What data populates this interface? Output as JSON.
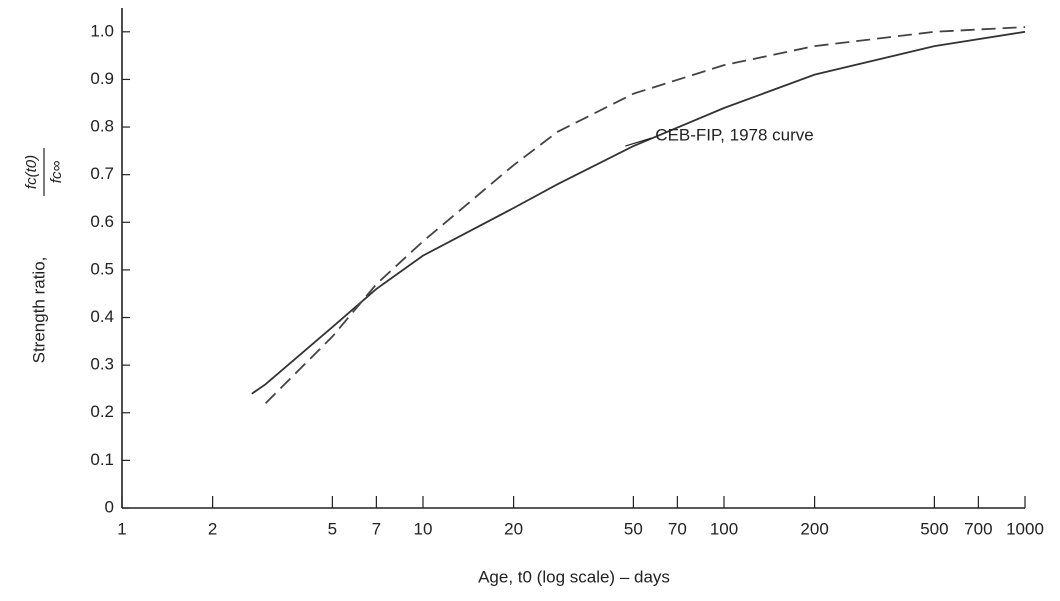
{
  "chart_data": {
    "type": "line",
    "x_label": "Age, t0 (log scale) – days",
    "y_label": "Strength ratio,",
    "y_label_numerator": "fc(t0)",
    "y_label_denominator": "fc∞",
    "x": [
      2.7,
      3,
      5,
      7,
      10,
      20,
      28,
      50,
      100,
      200,
      500,
      1000
    ],
    "series": [
      {
        "color": "#333333",
        "dashed": false,
        "values": [
          0.24,
          0.26,
          0.38,
          0.46,
          0.53,
          0.63,
          0.68,
          0.76,
          0.84,
          0.91,
          0.97,
          1.0
        ]
      },
      {
        "color": "#444444",
        "dashed": true,
        "values": [
          null,
          0.22,
          0.36,
          0.47,
          0.56,
          0.72,
          0.79,
          0.87,
          0.93,
          0.97,
          1.0,
          1.01
        ]
      }
    ],
    "annotation": {
      "text": "CEB-FIP, 1978 curve",
      "x": 47,
      "y": 0.76
    },
    "xlim": [
      1,
      1000
    ],
    "ylim": [
      0,
      1.05
    ],
    "xlog": true,
    "xticks": [
      1,
      2,
      5,
      7,
      10,
      20,
      50,
      70,
      100,
      200,
      500,
      700,
      1000
    ],
    "yticks": [
      0,
      0.1,
      0.2,
      0.3,
      0.4,
      0.5,
      0.6,
      0.7,
      0.8,
      0.9,
      {
        "value": 1,
        "label": "1.0"
      }
    ]
  }
}
